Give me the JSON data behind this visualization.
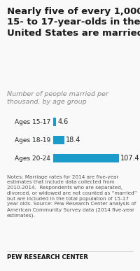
{
  "title": "Nearly five of every 1,000\n15- to 17-year-olds in the\nUnited States are married",
  "subtitle": "Number of people married per\nthousand, by age group",
  "categories": [
    "Ages 15-17",
    "Ages 18-19",
    "Ages 20-24"
  ],
  "values": [
    4.6,
    18.4,
    107.4
  ],
  "bar_color": "#1a9bc9",
  "xlim": [
    0,
    130
  ],
  "notes": "Notes: Marriage rates for 2014 are five-year estimates that include data collected from 2010-2014.  Respondents who are separated, divorced, or widowed are not counted as “married” but are included in the total population of 15-17 year olds. Source: Pew Research Center analysis of American Community Survey data (2014 five-year estimates).",
  "footer": "PEW RESEARCH CENTER",
  "background_color": "#f9f9f9",
  "title_color": "#1a1a1a",
  "subtitle_color": "#888888",
  "bar_label_color": "#222222",
  "notes_color": "#555555",
  "footer_color": "#111111",
  "title_fontsize": 9.5,
  "subtitle_fontsize": 6.8,
  "bar_fontsize": 7.0,
  "ytick_fontsize": 6.5,
  "notes_fontsize": 5.2,
  "footer_fontsize": 6.2
}
